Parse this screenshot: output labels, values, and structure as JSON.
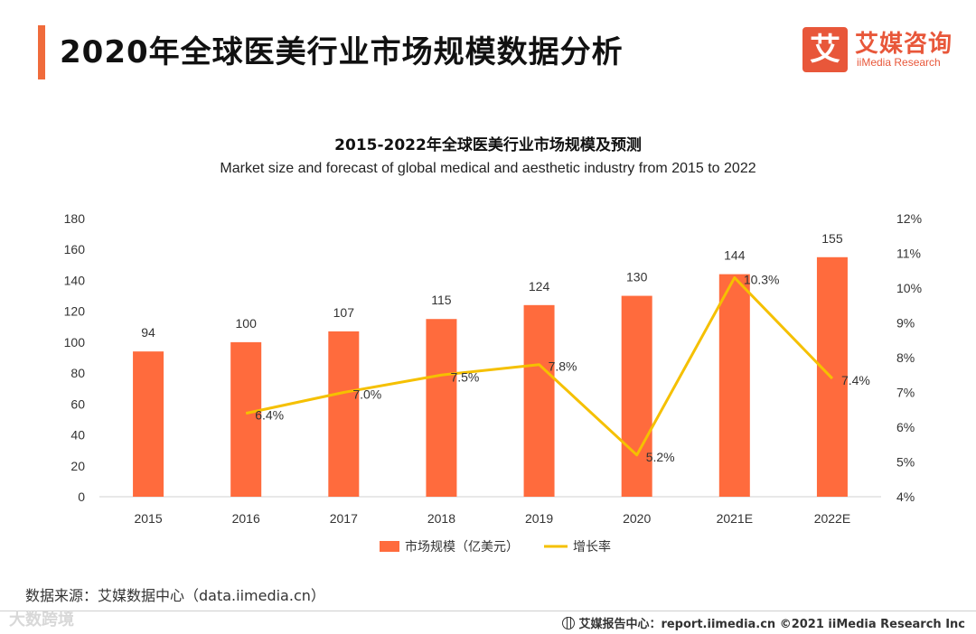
{
  "header": {
    "title": "2020年全球医美行业市场规模数据分析",
    "logo_mark": "艾",
    "logo_cn": "艾媒咨询",
    "logo_en": "iiMedia Research"
  },
  "chart_data": {
    "type": "bar",
    "title": "2015-2022年全球医美行业市场规模及预测",
    "subtitle": "Market size and forecast of global medical and aesthetic industry from 2015 to 2022",
    "categories": [
      "2015",
      "2016",
      "2017",
      "2018",
      "2019",
      "2020",
      "2021E",
      "2022E"
    ],
    "series": [
      {
        "name": "市场规模（亿美元）",
        "kind": "bar",
        "axis": "left",
        "values": [
          94,
          100,
          107,
          115,
          124,
          130,
          144,
          155
        ],
        "color": "#ff6b3d"
      },
      {
        "name": "增长率",
        "kind": "line",
        "axis": "right",
        "values": [
          null,
          6.4,
          7.0,
          7.5,
          7.8,
          5.2,
          10.3,
          7.4
        ],
        "color": "#f5c000"
      }
    ],
    "growth_labels": [
      null,
      "6.4%",
      "7.0%",
      "7.5%",
      "7.8%",
      "5.2%",
      "10.3%",
      "7.4%"
    ],
    "ylim": [
      0,
      180
    ],
    "yticks": [
      "0",
      "20",
      "40",
      "60",
      "80",
      "100",
      "120",
      "140",
      "160",
      "180"
    ],
    "y2lim": [
      4,
      12
    ],
    "y2ticks": [
      "4%",
      "5%",
      "6%",
      "7%",
      "8%",
      "9%",
      "10%",
      "11%",
      "12%"
    ],
    "legend_position": "bottom"
  },
  "footer": {
    "source": "数据来源：艾媒数据中心（data.iimedia.cn）",
    "watermark": "大数跨境",
    "credit": "艾媒报告中心：report.iimedia.cn   ©2021  iiMedia Research  Inc"
  }
}
